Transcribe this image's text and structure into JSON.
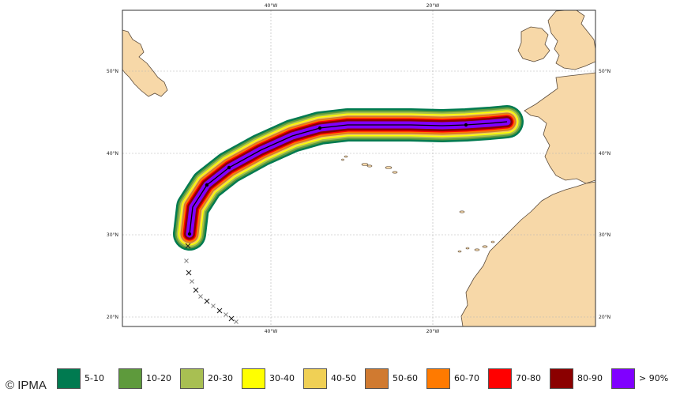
{
  "map": {
    "lon_labels": [
      "40°W",
      "20°W"
    ],
    "lat_labels": [
      "50°N",
      "40°N",
      "30°N",
      "20°N"
    ],
    "colors": {
      "land": "#f7d8a8",
      "coast": "#5a4a3a",
      "grid": "#b4b4b4",
      "frame": "#333333",
      "track": "#000000",
      "past_track": "#555555"
    }
  },
  "legend": [
    {
      "label": "5-10",
      "color": "#007a50"
    },
    {
      "label": "10-20",
      "color": "#5e9a3c"
    },
    {
      "label": "20-30",
      "color": "#a8bf52"
    },
    {
      "label": "30-40",
      "color": "#ffff00"
    },
    {
      "label": "40-50",
      "color": "#f0d055"
    },
    {
      "label": "50-60",
      "color": "#d07a30"
    },
    {
      "label": "60-70",
      "color": "#ff7a00"
    },
    {
      "label": "70-80",
      "color": "#ff0000"
    },
    {
      "label": "80-90",
      "color": "#8b0000"
    },
    {
      "label": "> 90%",
      "color": "#8000ff"
    }
  ],
  "copyright": "© IPMA"
}
